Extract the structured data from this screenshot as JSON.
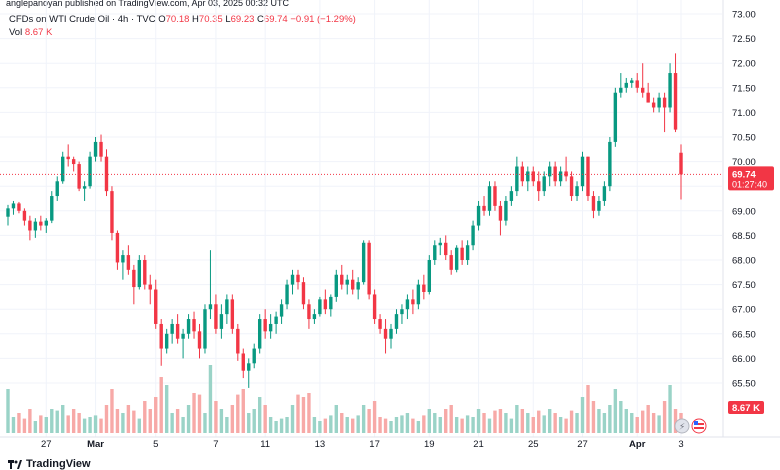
{
  "published_line": "anglepanoyan published on TradingView.com, Apr 03, 2025 00:32 UTC",
  "legend": {
    "symbol": "CFDs on WTI Crude Oil · 4h · TVC",
    "open_label": "O",
    "open": "70.18",
    "high_label": "H",
    "high": "70.35",
    "low_label": "L",
    "low": "69.23",
    "close_label": "C",
    "close": "69.74",
    "change": "−0.91 (−1.29%)",
    "vol_label": "Vol",
    "vol": "8.67 K"
  },
  "footer_brand": "TradingView",
  "colors": {
    "up": "#089981",
    "down": "#f23645",
    "up_vol": "#9ad3c7",
    "down_vol": "#f7a9a7",
    "grid": "#f0f3fa",
    "axis_text": "#131722"
  },
  "chart_data": {
    "type": "candlestick",
    "price_axis": {
      "ticks": [
        "73.00",
        "72.50",
        "72.00",
        "71.50",
        "71.00",
        "70.50",
        "70.00",
        "69.50",
        "69.00",
        "68.50",
        "68.00",
        "67.50",
        "67.00",
        "66.50",
        "66.00",
        "65.50"
      ]
    },
    "time_axis": {
      "ticks": [
        "27",
        "Mar",
        "5",
        "7",
        "11",
        "13",
        "17",
        "19",
        "21",
        "25",
        "27",
        "Apr",
        "3"
      ]
    },
    "last_price": {
      "value": "69.74",
      "countdown": "01:27:40"
    },
    "volume_label": "8.67 K",
    "ohlc": [
      [
        68.88,
        69.12,
        68.7,
        69.05
      ],
      [
        69.05,
        69.2,
        68.92,
        69.15
      ],
      [
        69.15,
        69.18,
        68.95,
        69.0
      ],
      [
        69.0,
        69.05,
        68.7,
        68.8
      ],
      [
        68.8,
        68.9,
        68.4,
        68.6
      ],
      [
        68.6,
        68.85,
        68.45,
        68.78
      ],
      [
        68.78,
        68.9,
        68.6,
        68.7
      ],
      [
        68.7,
        68.85,
        68.55,
        68.8
      ],
      [
        68.8,
        69.4,
        68.75,
        69.3
      ],
      [
        69.3,
        69.7,
        69.2,
        69.6
      ],
      [
        69.6,
        70.2,
        69.55,
        70.1
      ],
      [
        70.1,
        70.35,
        69.9,
        70.05
      ],
      [
        70.05,
        70.1,
        69.8,
        69.95
      ],
      [
        69.95,
        70.0,
        69.4,
        69.45
      ],
      [
        69.45,
        69.6,
        69.2,
        69.5
      ],
      [
        69.5,
        70.2,
        69.45,
        70.1
      ],
      [
        70.1,
        70.5,
        70.0,
        70.4
      ],
      [
        70.4,
        70.55,
        70.0,
        70.1
      ],
      [
        70.1,
        70.25,
        69.3,
        69.4
      ],
      [
        69.4,
        69.5,
        68.4,
        68.55
      ],
      [
        68.55,
        68.6,
        67.8,
        67.95
      ],
      [
        67.95,
        68.2,
        67.6,
        68.1
      ],
      [
        68.1,
        68.3,
        67.7,
        67.8
      ],
      [
        67.8,
        67.9,
        67.1,
        67.45
      ],
      [
        67.45,
        68.1,
        67.4,
        68.0
      ],
      [
        68.0,
        68.1,
        67.4,
        67.5
      ],
      [
        67.5,
        67.7,
        67.1,
        67.4
      ],
      [
        67.4,
        67.6,
        66.6,
        66.7
      ],
      [
        66.7,
        66.8,
        65.85,
        66.2
      ],
      [
        66.2,
        66.6,
        66.1,
        66.5
      ],
      [
        66.5,
        66.8,
        66.3,
        66.7
      ],
      [
        66.7,
        66.9,
        66.3,
        66.4
      ],
      [
        66.4,
        66.6,
        66.0,
        66.5
      ],
      [
        66.5,
        66.9,
        66.4,
        66.8
      ],
      [
        66.8,
        66.95,
        66.4,
        66.55
      ],
      [
        66.55,
        66.7,
        66.0,
        66.2
      ],
      [
        66.2,
        67.1,
        66.1,
        67.0
      ],
      [
        67.0,
        68.2,
        66.8,
        67.1
      ],
      [
        67.1,
        67.3,
        66.5,
        66.6
      ],
      [
        66.6,
        67.1,
        66.4,
        66.9
      ],
      [
        66.9,
        67.3,
        66.7,
        67.2
      ],
      [
        67.2,
        67.3,
        66.5,
        66.6
      ],
      [
        66.6,
        66.7,
        65.95,
        66.1
      ],
      [
        66.1,
        66.2,
        65.6,
        65.75
      ],
      [
        65.75,
        66.0,
        65.4,
        65.9
      ],
      [
        65.9,
        66.3,
        65.8,
        66.2
      ],
      [
        66.2,
        66.9,
        66.1,
        66.8
      ],
      [
        66.8,
        67.0,
        66.4,
        66.55
      ],
      [
        66.55,
        66.9,
        66.4,
        66.7
      ],
      [
        66.7,
        66.95,
        66.5,
        66.85
      ],
      [
        66.85,
        67.2,
        66.7,
        67.1
      ],
      [
        67.1,
        67.6,
        67.0,
        67.5
      ],
      [
        67.5,
        67.8,
        67.3,
        67.7
      ],
      [
        67.7,
        67.8,
        67.4,
        67.55
      ],
      [
        67.55,
        67.65,
        67.0,
        67.1
      ],
      [
        67.1,
        67.2,
        66.6,
        66.8
      ],
      [
        66.8,
        67.0,
        66.7,
        66.9
      ],
      [
        66.9,
        67.25,
        66.85,
        67.2
      ],
      [
        67.2,
        67.4,
        66.9,
        67.0
      ],
      [
        67.0,
        67.3,
        66.85,
        67.25
      ],
      [
        67.25,
        67.8,
        67.15,
        67.7
      ],
      [
        67.7,
        67.9,
        67.4,
        67.5
      ],
      [
        67.5,
        67.7,
        67.3,
        67.6
      ],
      [
        67.6,
        67.8,
        67.3,
        67.4
      ],
      [
        67.4,
        67.65,
        67.2,
        67.55
      ],
      [
        67.55,
        68.4,
        67.5,
        68.35
      ],
      [
        68.35,
        68.4,
        67.2,
        67.3
      ],
      [
        67.3,
        67.4,
        66.7,
        66.8
      ],
      [
        66.8,
        66.9,
        66.5,
        66.6
      ],
      [
        66.6,
        66.8,
        66.1,
        66.4
      ],
      [
        66.4,
        66.7,
        66.2,
        66.6
      ],
      [
        66.6,
        67.0,
        66.5,
        66.9
      ],
      [
        66.9,
        67.1,
        66.7,
        67.0
      ],
      [
        67.0,
        67.3,
        66.8,
        67.2
      ],
      [
        67.2,
        67.4,
        66.9,
        67.1
      ],
      [
        67.1,
        67.6,
        67.0,
        67.5
      ],
      [
        67.5,
        67.7,
        67.2,
        67.35
      ],
      [
        67.35,
        68.1,
        67.3,
        68.0
      ],
      [
        68.0,
        68.4,
        67.9,
        68.3
      ],
      [
        68.3,
        68.45,
        68.1,
        68.35
      ],
      [
        68.35,
        68.5,
        68.0,
        68.1
      ],
      [
        68.1,
        68.2,
        67.7,
        67.8
      ],
      [
        67.8,
        68.3,
        67.75,
        68.25
      ],
      [
        68.25,
        68.4,
        67.9,
        68.0
      ],
      [
        68.0,
        68.4,
        67.9,
        68.3
      ],
      [
        68.3,
        68.8,
        68.2,
        68.7
      ],
      [
        68.7,
        69.2,
        68.6,
        69.1
      ],
      [
        69.1,
        69.3,
        68.9,
        69.0
      ],
      [
        69.0,
        69.6,
        68.9,
        69.5
      ],
      [
        69.5,
        69.6,
        69.0,
        69.1
      ],
      [
        69.1,
        69.2,
        68.5,
        68.8
      ],
      [
        68.8,
        69.3,
        68.7,
        69.2
      ],
      [
        69.2,
        69.5,
        69.1,
        69.4
      ],
      [
        69.4,
        70.1,
        69.3,
        69.9
      ],
      [
        69.9,
        70.0,
        69.5,
        69.6
      ],
      [
        69.6,
        69.9,
        69.4,
        69.8
      ],
      [
        69.8,
        69.9,
        69.5,
        69.6
      ],
      [
        69.6,
        69.8,
        69.2,
        69.4
      ],
      [
        69.4,
        69.8,
        69.3,
        69.7
      ],
      [
        69.7,
        70.0,
        69.5,
        69.9
      ],
      [
        69.9,
        70.0,
        69.5,
        69.6
      ],
      [
        69.6,
        69.9,
        69.5,
        69.8
      ],
      [
        69.8,
        70.1,
        69.6,
        69.7
      ],
      [
        69.7,
        69.8,
        69.2,
        69.3
      ],
      [
        69.3,
        69.6,
        69.2,
        69.5
      ],
      [
        69.5,
        70.2,
        69.4,
        70.1
      ],
      [
        70.1,
        70.1,
        69.2,
        69.3
      ],
      [
        69.3,
        69.4,
        68.85,
        69.0
      ],
      [
        69.0,
        69.3,
        68.9,
        69.2
      ],
      [
        69.2,
        69.6,
        69.1,
        69.5
      ],
      [
        69.5,
        70.5,
        69.4,
        70.4
      ],
      [
        70.4,
        71.5,
        70.3,
        71.4
      ],
      [
        71.4,
        71.8,
        71.3,
        71.5
      ],
      [
        71.5,
        71.7,
        71.4,
        71.6
      ],
      [
        71.6,
        71.7,
        71.5,
        71.65
      ],
      [
        71.65,
        71.8,
        71.4,
        71.5
      ],
      [
        71.5,
        72.0,
        71.3,
        71.4
      ],
      [
        71.4,
        71.6,
        71.2,
        71.2
      ],
      [
        71.2,
        71.3,
        71.0,
        71.1
      ],
      [
        71.1,
        71.4,
        71.0,
        71.3
      ],
      [
        71.3,
        71.4,
        70.6,
        71.1
      ],
      [
        71.1,
        72.0,
        71.0,
        71.8
      ],
      [
        71.8,
        72.2,
        70.6,
        70.65
      ],
      [
        70.18,
        70.35,
        69.23,
        69.74
      ]
    ],
    "volume": [
      0.55,
      0.2,
      0.25,
      0.18,
      0.3,
      0.15,
      0.22,
      0.2,
      0.3,
      0.28,
      0.35,
      0.22,
      0.3,
      0.25,
      0.18,
      0.2,
      0.22,
      0.18,
      0.35,
      0.55,
      0.3,
      0.25,
      0.35,
      0.28,
      0.18,
      0.4,
      0.3,
      0.45,
      0.7,
      0.6,
      0.25,
      0.3,
      0.2,
      0.35,
      0.5,
      0.48,
      0.25,
      0.85,
      0.4,
      0.3,
      0.2,
      0.35,
      0.48,
      0.55,
      0.25,
      0.3,
      0.45,
      0.35,
      0.2,
      0.15,
      0.18,
      0.2,
      0.35,
      0.48,
      0.45,
      0.5,
      0.2,
      0.15,
      0.18,
      0.22,
      0.35,
      0.25,
      0.2,
      0.18,
      0.22,
      0.35,
      0.3,
      0.4,
      0.2,
      0.18,
      0.15,
      0.2,
      0.22,
      0.25,
      0.18,
      0.15,
      0.22,
      0.3,
      0.25,
      0.2,
      0.3,
      0.35,
      0.2,
      0.18,
      0.22,
      0.2,
      0.3,
      0.25,
      0.18,
      0.28,
      0.3,
      0.25,
      0.18,
      0.35,
      0.3,
      0.25,
      0.2,
      0.28,
      0.22,
      0.3,
      0.25,
      0.2,
      0.18,
      0.28,
      0.25,
      0.45,
      0.6,
      0.4,
      0.3,
      0.25,
      0.35,
      0.55,
      0.4,
      0.3,
      0.25,
      0.2,
      0.28,
      0.35,
      0.25,
      0.22,
      0.4,
      0.6,
      0.3,
      0.25
    ]
  }
}
